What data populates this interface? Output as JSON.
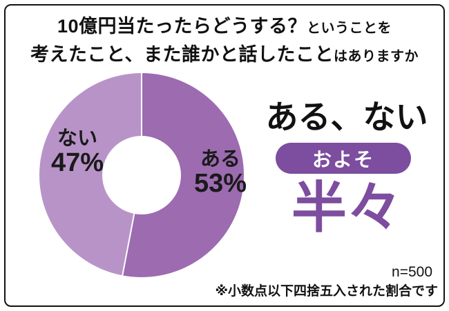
{
  "theme": {
    "accent": "#7d4d9f",
    "text": "#1a1a1a",
    "border": "#111111"
  },
  "title": {
    "line1_main": "10億円当たったらどうする？",
    "line1_sub": "ということを",
    "line2_main": "考えたこと、また誰かと話したこと",
    "line2_sub": "はありますか"
  },
  "chart_data": {
    "type": "pie",
    "donut": true,
    "title": "10億円当たったらどうする？ということを考えたこと、また誰かと話したことはありますか",
    "labels": [
      "ある",
      "ない"
    ],
    "values": [
      53,
      47
    ],
    "unit": "%",
    "colors": [
      "#9c6bb0",
      "#b893c8"
    ],
    "start_angle_deg": 0,
    "direction": "clockwise",
    "sample_size": 500,
    "note": "※小数点以下四捨五入された割合です"
  },
  "slices": [
    {
      "label": "ある",
      "pct": "53%"
    },
    {
      "label": "ない",
      "pct": "47%"
    }
  ],
  "right_panel": {
    "headline": "ある、ない",
    "badge": "およそ",
    "big_text": "半々"
  },
  "footer": {
    "n": "n=500",
    "note": "※小数点以下四捨五入された割合です"
  }
}
